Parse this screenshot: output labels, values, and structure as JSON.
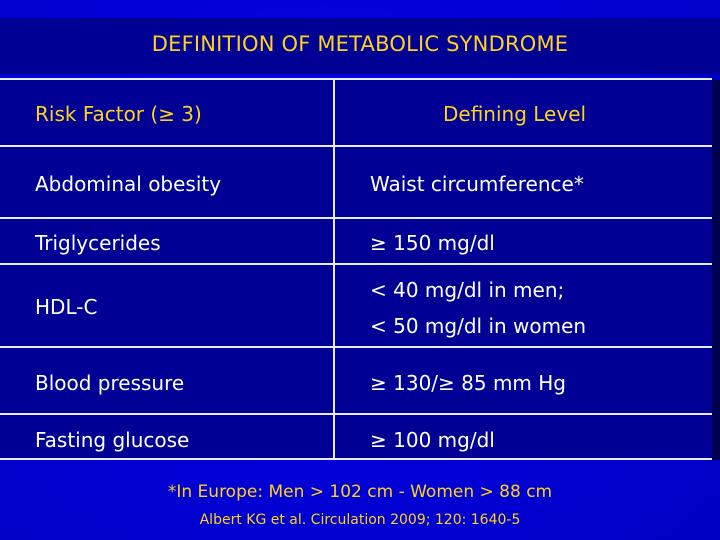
{
  "title": "DEFINITION OF METABOLIC SYNDROME",
  "table": {
    "headers": {
      "risk_factor": "Risk Factor (≥ 3)",
      "defining_level": "Defining Level"
    },
    "rows": [
      {
        "factor": "Abdominal obesity",
        "level": "Waist circumference*"
      },
      {
        "factor": "Triglycerides",
        "level": "≥ 150 mg/dl"
      },
      {
        "factor": "HDL-C",
        "level_line1": "< 40 mg/dl in men;",
        "level_line2": "< 50 mg/dl in women"
      },
      {
        "factor": "Blood pressure",
        "level": "≥ 130/≥ 85 mm Hg"
      },
      {
        "factor": "Fasting glucose",
        "level": "≥ 100 mg/dl"
      }
    ]
  },
  "footnote": "*In Europe: Men > 102 cm - Women > 88 cm",
  "reference": "Albert KG et al. Circulation 2009; 120: 1640-5",
  "colors": {
    "background": "#0000d8",
    "table": "#000094",
    "accent": "#ffd21e",
    "text": "#ffffff",
    "rules": "#e9e9ff"
  }
}
